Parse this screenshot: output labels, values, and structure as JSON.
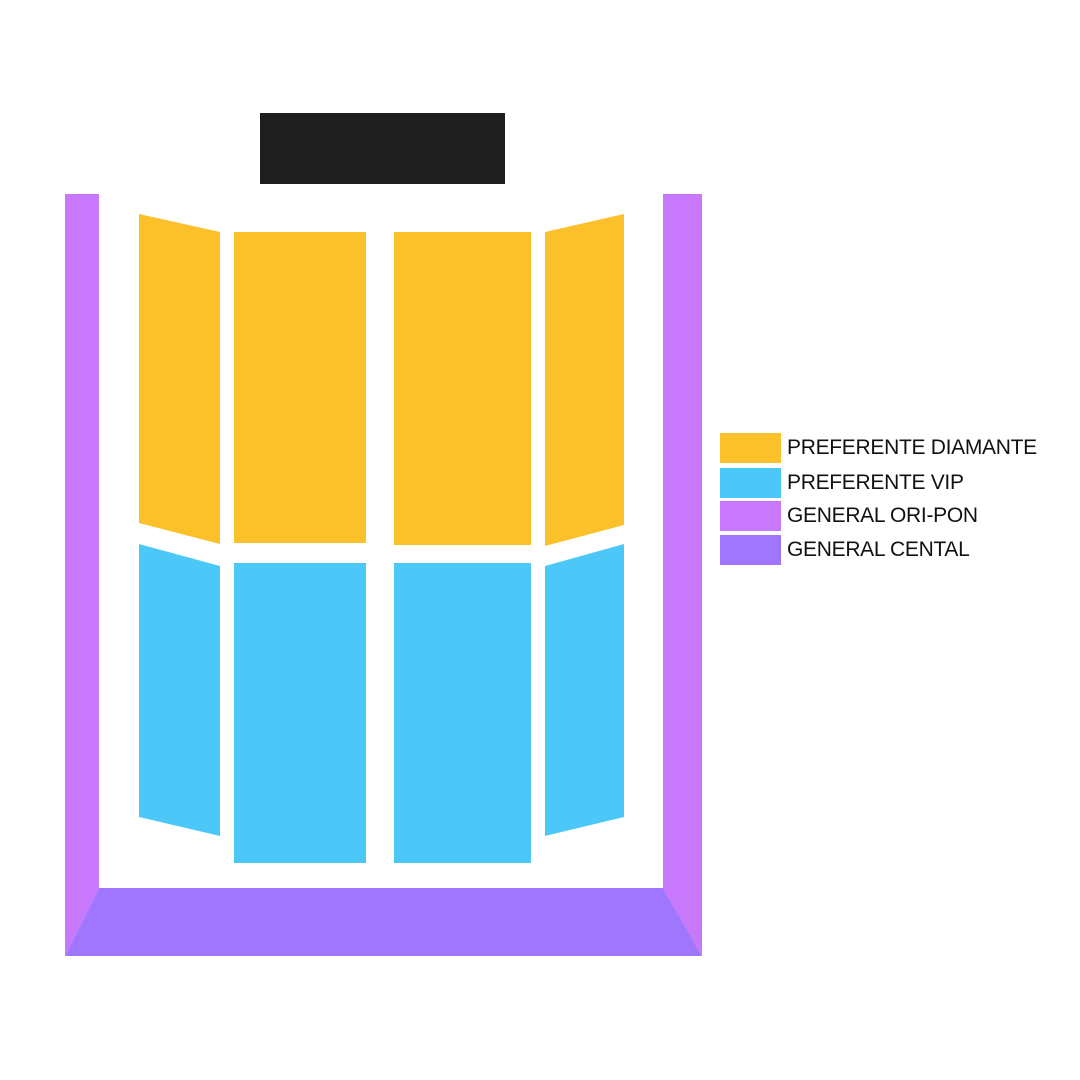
{
  "colors": {
    "stage": "#1E1E1E",
    "preferente_diamante": "#FCC02A",
    "preferente_vip": "#4CC8F8",
    "general_ori_pon": "#C878FC",
    "general_central": "#A076FE"
  },
  "legend": [
    {
      "label": "PREFERENTE DIAMANTE",
      "color": "#FCC02A"
    },
    {
      "label": "PREFERENTE VIP",
      "color": "#4CC8F8"
    },
    {
      "label": "GENERAL ORI-PON",
      "color": "#C878FC"
    },
    {
      "label": "GENERAL CENTAL",
      "color": "#A076FE"
    }
  ]
}
